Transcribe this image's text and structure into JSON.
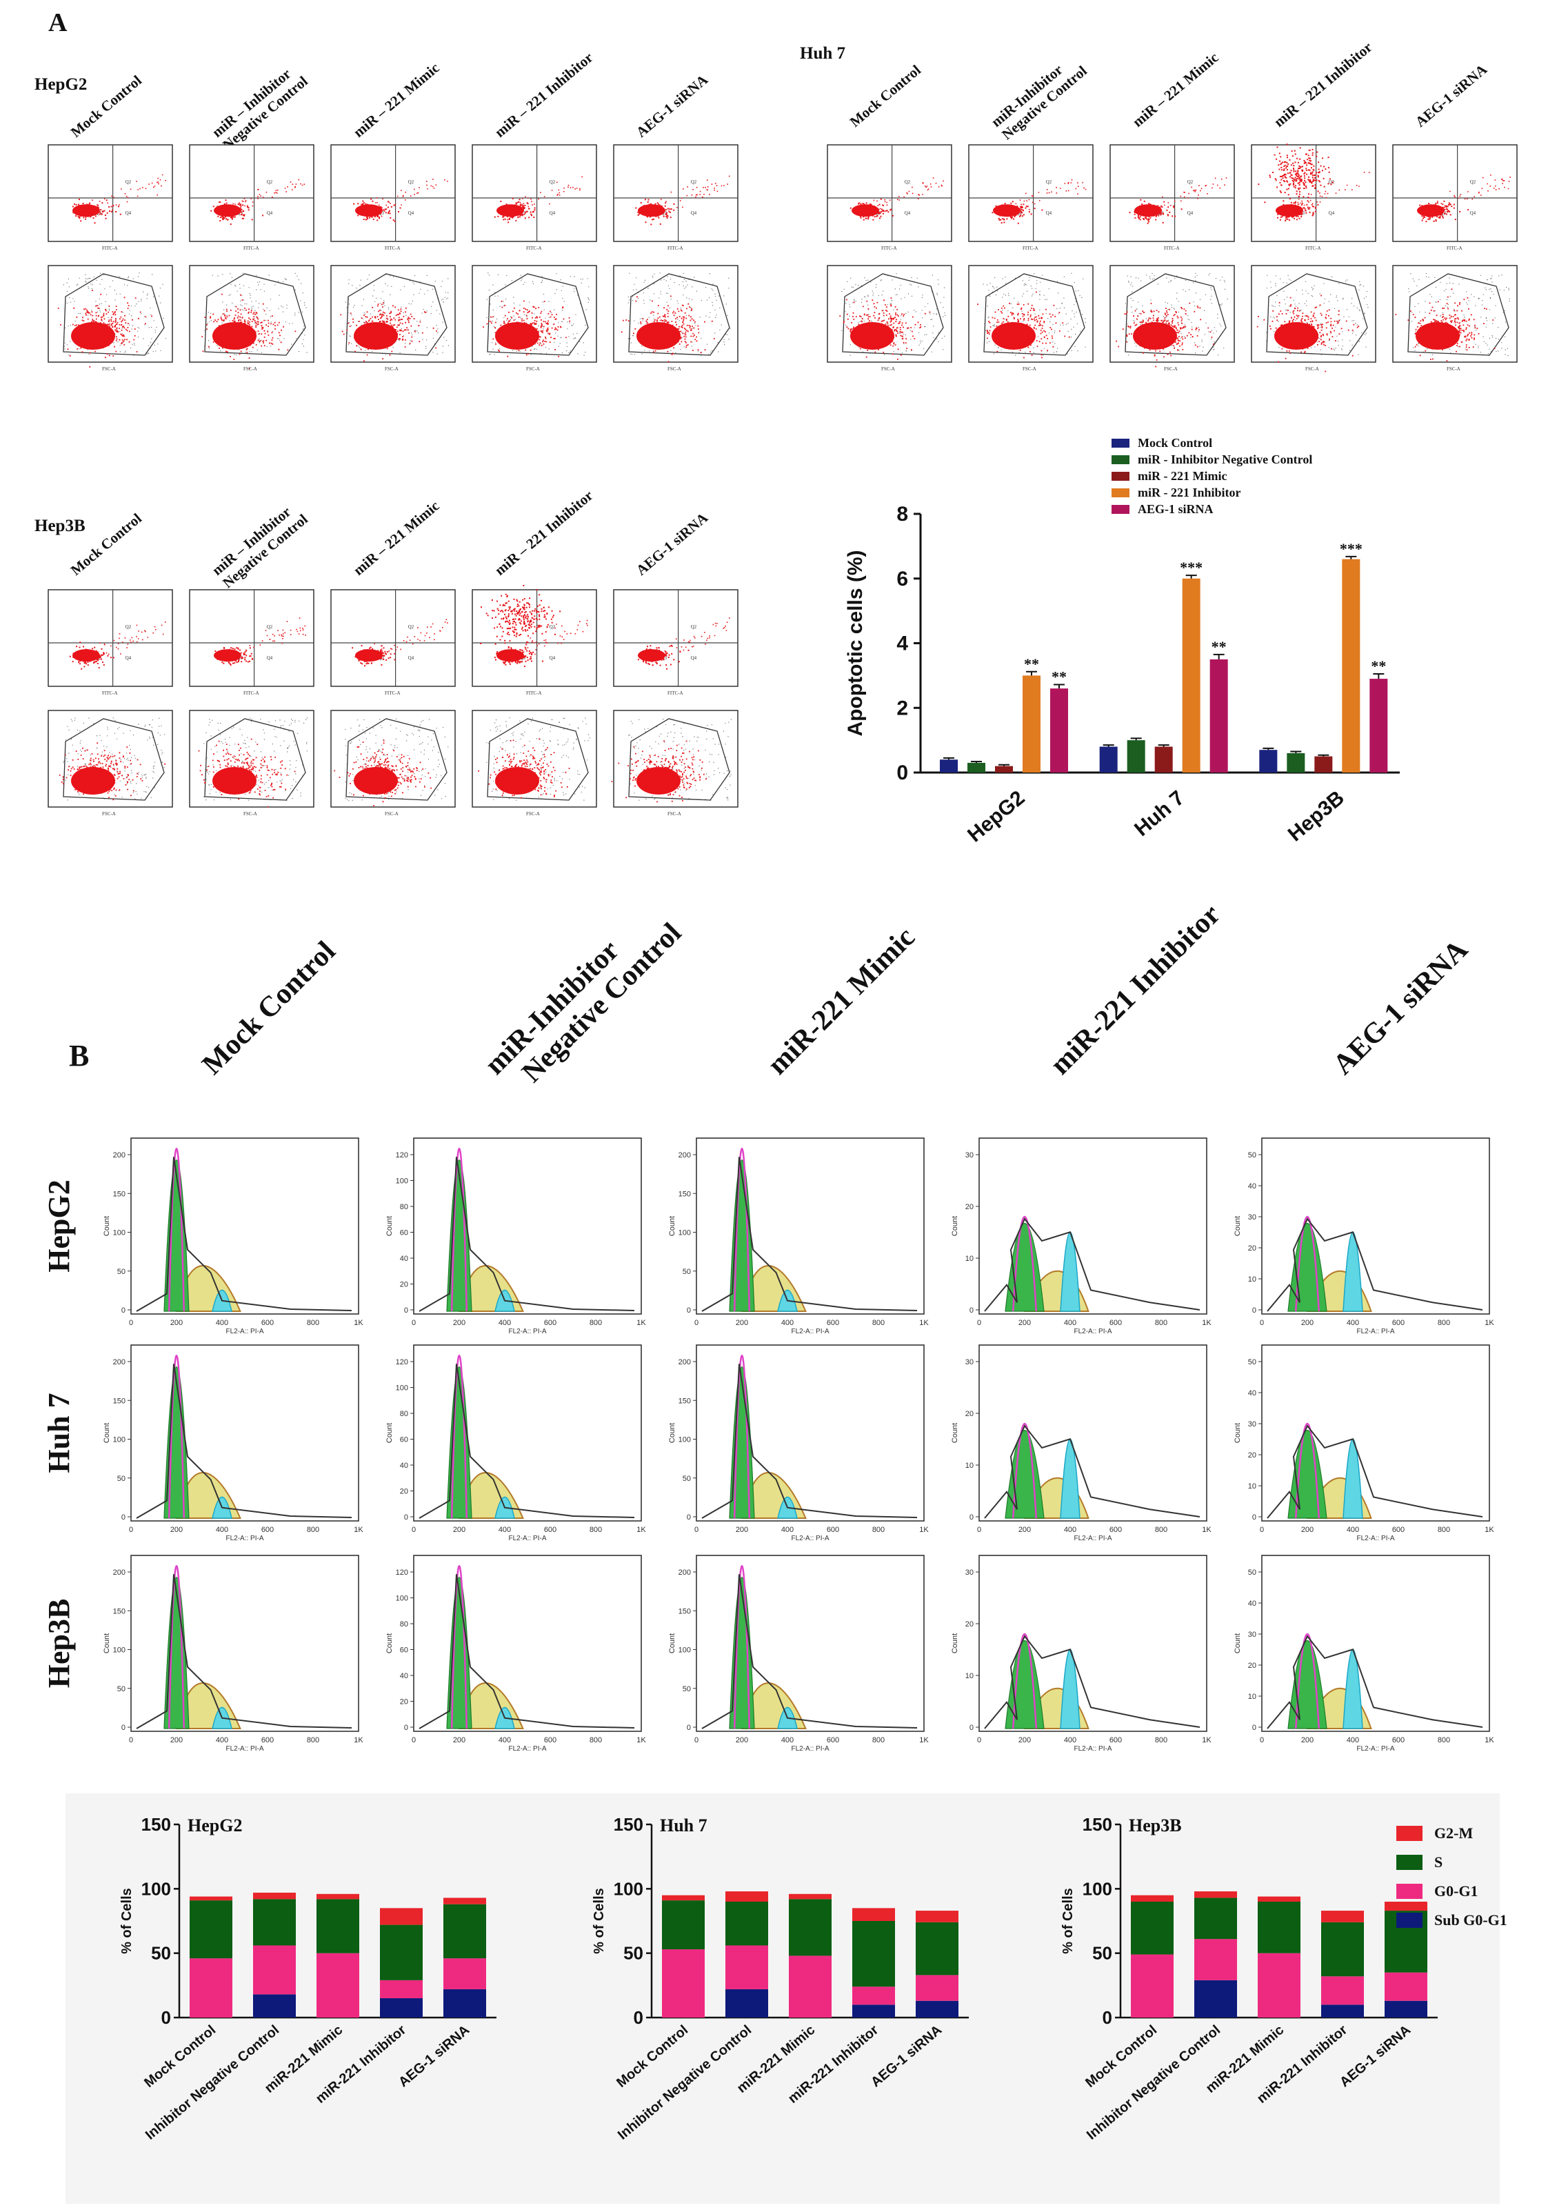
{
  "panels": {
    "A": "A",
    "B": "B"
  },
  "flow": {
    "panel_label": "A",
    "groups": [
      {
        "title": "HepG2",
        "conditions": [
          "Mock Control",
          "miR – Inhibitor\nNegative Control",
          "miR – 221 Mimic",
          "miR – 221 Inhibitor",
          "AEG-1 siRNA"
        ]
      },
      {
        "title": "Huh 7",
        "conditions": [
          "Mock Control",
          "miR-Inhibitor\nNegative Control",
          "miR – 221 Mimic",
          "miR – 221 Inhibitor",
          "AEG-1 siRNA"
        ]
      },
      {
        "title": "Hep3B",
        "conditions": [
          "Mock Control",
          "miR – Inhibitor\nNegative Control",
          "miR – 221 Mimic",
          "miR – 221 Inhibitor",
          "AEG-1 siRNA"
        ]
      }
    ],
    "quadrants": [
      "Q1",
      "Q2",
      "Q3",
      "Q4"
    ],
    "scatter_axes": {
      "x": "FITC-A",
      "y": "PE-A"
    },
    "gate_axes": {
      "x": "FSC-A",
      "y": "SSC-A"
    }
  },
  "cycle": {
    "panel_label": "B",
    "conditions": [
      "Mock Control",
      "miR-Inhibitor\nNegative Control",
      "miR-221 Mimic",
      "miR-221 Inhibitor",
      "AEG-1 siRNA"
    ],
    "rows": [
      "HepG2",
      "Huh 7",
      "Hep3B"
    ],
    "x_axis_label": "FL2-A:: PI-A",
    "y_axis_label": "Count",
    "x_ticks": [
      "0",
      "200",
      "400",
      "600",
      "800",
      "1K"
    ],
    "y_ticks_by_col": [
      [
        "0",
        "50",
        "100",
        "150",
        "200"
      ],
      [
        "0",
        "20",
        "40",
        "60",
        "80",
        "100",
        "120"
      ],
      [
        "0",
        "50",
        "100",
        "150",
        "200"
      ],
      [
        "0",
        "10",
        "20",
        "30"
      ],
      [
        "0",
        "10",
        "20",
        "30",
        "40",
        "50"
      ]
    ]
  },
  "colors": {
    "mock": "#1a237e",
    "neg": "#1b5e20",
    "mimic": "#8b1a1a",
    "inhib": "#e07b20",
    "sirna": "#b0155c",
    "g2m": "#e8252b",
    "s": "#0b5e12",
    "g0g1": "#ee2a80",
    "subg0g1": "#0d1a7a"
  },
  "chart_data": [
    {
      "type": "bar",
      "title": "",
      "ylabel": "Apoptotic cells (%)",
      "xlabel": "",
      "ylim": [
        0,
        8
      ],
      "yticks": [
        0,
        2,
        4,
        6,
        8
      ],
      "categories": [
        "HepG2",
        "Huh 7",
        "Hep3B"
      ],
      "series": [
        {
          "name": "Mock Control",
          "values": [
            0.4,
            0.8,
            0.7
          ],
          "errors": [
            0.05,
            0.05,
            0.05
          ],
          "sig": [
            "",
            "",
            ""
          ]
        },
        {
          "name": "miR - Inhibitor Negative Control",
          "values": [
            0.3,
            1.0,
            0.6
          ],
          "errors": [
            0.04,
            0.06,
            0.05
          ],
          "sig": [
            "",
            "",
            ""
          ]
        },
        {
          "name": "miR - 221 Mimic",
          "values": [
            0.2,
            0.8,
            0.5
          ],
          "errors": [
            0.04,
            0.05,
            0.04
          ],
          "sig": [
            "",
            "",
            ""
          ]
        },
        {
          "name": "miR - 221 Inhibitor",
          "values": [
            3.0,
            6.0,
            6.6
          ],
          "errors": [
            0.12,
            0.1,
            0.08
          ],
          "sig": [
            "**",
            "***",
            "***"
          ]
        },
        {
          "name": "AEG-1 siRNA",
          "values": [
            2.6,
            3.5,
            2.9
          ],
          "errors": [
            0.12,
            0.15,
            0.15
          ],
          "sig": [
            "**",
            "**",
            "**"
          ]
        }
      ],
      "legend": "top"
    },
    {
      "type": "bar",
      "stacked": true,
      "title": "HepG2",
      "ylabel": "% of Cells",
      "ylim": [
        0,
        150
      ],
      "yticks": [
        0,
        50,
        100,
        150
      ],
      "categories": [
        "Mock Control",
        "Inhibitor Negative Control",
        "miR-221 Mimic",
        "miR-221 Inhibitor",
        "AEG-1 siRNA"
      ],
      "series": [
        {
          "name": "Sub G0-G1",
          "values": [
            0,
            18,
            0,
            15,
            22
          ]
        },
        {
          "name": "G0-G1",
          "values": [
            46,
            38,
            50,
            14,
            24
          ]
        },
        {
          "name": "S",
          "values": [
            45,
            36,
            42,
            43,
            42
          ]
        },
        {
          "name": "G2-M",
          "values": [
            3,
            5,
            4,
            13,
            5
          ]
        }
      ]
    },
    {
      "type": "bar",
      "stacked": true,
      "title": "Huh 7",
      "ylabel": "% of Cells",
      "ylim": [
        0,
        150
      ],
      "yticks": [
        0,
        50,
        100,
        150
      ],
      "categories": [
        "Mock Control",
        "Inhibitor Negative Control",
        "miR-221 Mimic",
        "miR-221 Inhibitor",
        "AEG-1 siRNA"
      ],
      "series": [
        {
          "name": "Sub G0-G1",
          "values": [
            0,
            22,
            0,
            10,
            13
          ]
        },
        {
          "name": "G0-G1",
          "values": [
            53,
            34,
            48,
            14,
            20
          ]
        },
        {
          "name": "S",
          "values": [
            38,
            34,
            44,
            51,
            41
          ]
        },
        {
          "name": "G2-M",
          "values": [
            4,
            8,
            4,
            10,
            9
          ]
        }
      ]
    },
    {
      "type": "bar",
      "stacked": true,
      "title": "Hep3B",
      "ylabel": "% of Cells",
      "ylim": [
        0,
        150
      ],
      "yticks": [
        0,
        50,
        100,
        150
      ],
      "categories": [
        "Mock Control",
        "Inhibitor Negative Control",
        "miR-221 Mimic",
        "miR-221 Inhibitor",
        "AEG-1 siRNA"
      ],
      "series": [
        {
          "name": "Sub G0-G1",
          "values": [
            0,
            29,
            0,
            10,
            13
          ]
        },
        {
          "name": "G0-G1",
          "values": [
            49,
            32,
            50,
            22,
            22
          ]
        },
        {
          "name": "S",
          "values": [
            41,
            32,
            40,
            42,
            48
          ]
        },
        {
          "name": "G2-M",
          "values": [
            5,
            5,
            4,
            9,
            7
          ]
        }
      ],
      "legend": "right"
    }
  ],
  "stack_legend": [
    "G2-M",
    "S",
    "G0-G1",
    "Sub G0-G1"
  ]
}
